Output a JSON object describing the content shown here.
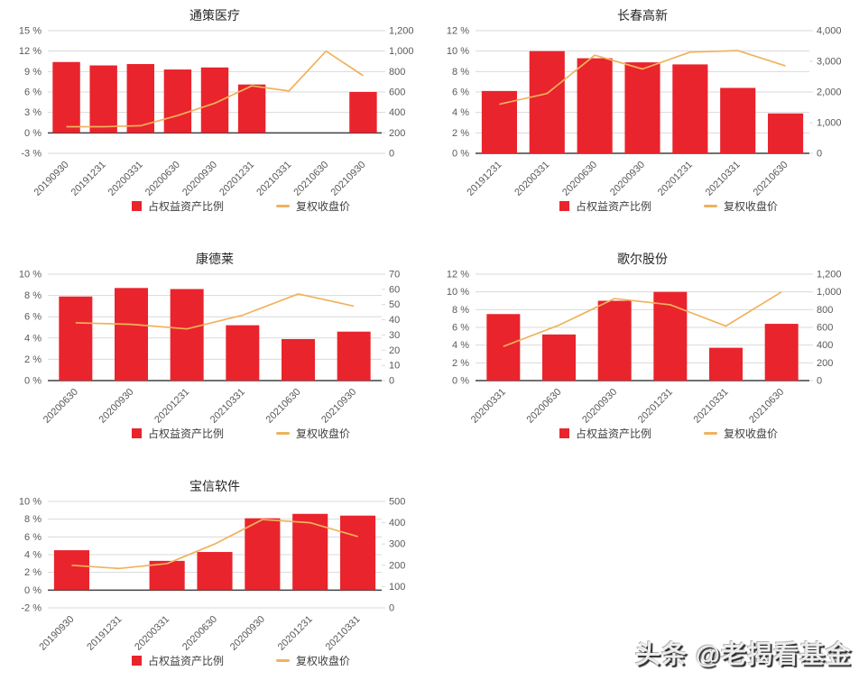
{
  "legend": {
    "bar_label": "占权益资产比例",
    "line_label": "复权收盘价"
  },
  "watermark": {
    "text": "头条 @老揭看基金"
  },
  "colors": {
    "bar": "#e9242c",
    "line": "#f0b25c",
    "grid": "#d9d9d9",
    "axis": "#404040",
    "tick": "#595959"
  },
  "chart_data": [
    {
      "type": "bar",
      "title": "通策医疗",
      "categories": [
        "20190930",
        "20191231",
        "20200331",
        "20200630",
        "20200930",
        "20201231",
        "20210331",
        "20210630",
        "20210930"
      ],
      "series": [
        {
          "name": "占权益资产比例",
          "type": "bar",
          "axis": "left",
          "unit": "%",
          "values": [
            10.4,
            9.9,
            10.1,
            9.3,
            9.6,
            7.1,
            null,
            null,
            6.0
          ]
        },
        {
          "name": "复权收盘价",
          "type": "line",
          "axis": "right",
          "values": [
            260,
            260,
            270,
            370,
            490,
            660,
            610,
            1000,
            760
          ]
        }
      ],
      "left_axis": {
        "min": -3,
        "max": 15,
        "step": 3,
        "suffix": " %"
      },
      "right_axis": {
        "min": 0,
        "max": 1200,
        "step": 200
      },
      "grid": true,
      "legend_position": "bottom"
    },
    {
      "type": "bar",
      "title": "长春高新",
      "categories": [
        "20191231",
        "20200331",
        "20200630",
        "20200930",
        "20201231",
        "20210331",
        "20210630"
      ],
      "series": [
        {
          "name": "占权益资产比例",
          "type": "bar",
          "axis": "left",
          "unit": "%",
          "values": [
            6.1,
            10.0,
            9.3,
            8.9,
            8.7,
            6.4,
            3.9
          ]
        },
        {
          "name": "复权收盘价",
          "type": "line",
          "axis": "right",
          "values": [
            1600,
            1950,
            3200,
            2750,
            3300,
            3350,
            2850
          ]
        }
      ],
      "left_axis": {
        "min": 0,
        "max": 12,
        "step": 2,
        "suffix": " %"
      },
      "right_axis": {
        "min": 0,
        "max": 4000,
        "step": 1000
      },
      "grid": true,
      "legend_position": "bottom"
    },
    {
      "type": "bar",
      "title": "康德莱",
      "categories": [
        "20200630",
        "20200930",
        "20201231",
        "20210331",
        "20210630",
        "20210930"
      ],
      "series": [
        {
          "name": "占权益资产比例",
          "type": "bar",
          "axis": "left",
          "unit": "%",
          "values": [
            7.9,
            8.7,
            8.6,
            5.2,
            3.9,
            4.6
          ]
        },
        {
          "name": "复权收盘价",
          "type": "line",
          "axis": "right",
          "values": [
            38,
            37,
            34,
            43,
            57,
            49
          ]
        }
      ],
      "left_axis": {
        "min": 0,
        "max": 10,
        "step": 2,
        "suffix": " %"
      },
      "right_axis": {
        "min": 0,
        "max": 70,
        "step": 10
      },
      "grid": true,
      "legend_position": "bottom"
    },
    {
      "type": "bar",
      "title": "歌尔股份",
      "categories": [
        "20200331",
        "20200630",
        "20200930",
        "20201231",
        "20210331",
        "20210630"
      ],
      "series": [
        {
          "name": "占权益资产比例",
          "type": "bar",
          "axis": "left",
          "unit": "%",
          "values": [
            7.5,
            5.2,
            9.0,
            10.0,
            3.7,
            6.4
          ]
        },
        {
          "name": "复权收盘价",
          "type": "line",
          "axis": "right",
          "values": [
            385,
            625,
            925,
            855,
            615,
            1000
          ]
        }
      ],
      "left_axis": {
        "min": 0,
        "max": 12,
        "step": 2,
        "suffix": " %"
      },
      "right_axis": {
        "min": 0,
        "max": 1200,
        "step": 200
      },
      "grid": true,
      "legend_position": "bottom"
    },
    {
      "type": "bar",
      "title": "宝信软件",
      "categories": [
        "20190930",
        "20191231",
        "20200331",
        "20200630",
        "20200930",
        "20201231",
        "20210331"
      ],
      "series": [
        {
          "name": "占权益资产比例",
          "type": "bar",
          "axis": "left",
          "unit": "%",
          "values": [
            4.5,
            null,
            3.3,
            4.3,
            8.1,
            8.6,
            8.4
          ]
        },
        {
          "name": "复权收盘价",
          "type": "line",
          "axis": "right",
          "values": [
            200,
            185,
            208,
            300,
            415,
            400,
            335
          ]
        }
      ],
      "left_axis": {
        "min": -2,
        "max": 10,
        "step": 2,
        "suffix": " %"
      },
      "right_axis": {
        "min": 0,
        "max": 500,
        "step": 100
      },
      "grid": true,
      "legend_position": "bottom"
    }
  ]
}
